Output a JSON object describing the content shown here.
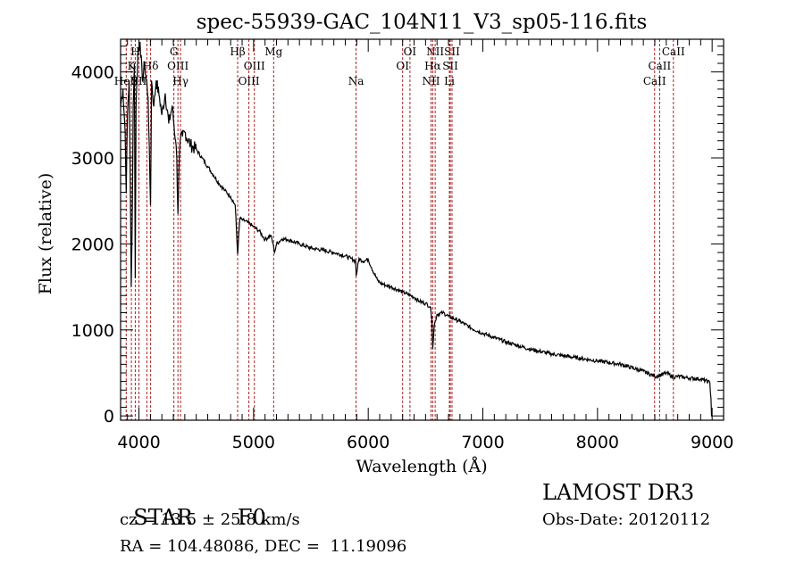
{
  "chart_data": {
    "type": "line",
    "title": "spec-55939-GAC_104N11_V3_sp05-116.fits",
    "xlabel": "Wavelength (Å)",
    "ylabel": "Flux (relative)",
    "xlim": [
      3840,
      9100
    ],
    "ylim": [
      -50,
      4380
    ],
    "x_ticks": [
      4000,
      5000,
      6000,
      7000,
      8000,
      9000
    ],
    "y_ticks": [
      0,
      1000,
      2000,
      3000,
      4000
    ],
    "x_minor_step": 100,
    "y_minor_step": 100,
    "grid": false,
    "series": [
      {
        "name": "spectrum",
        "color": "#000000",
        "x": [
          3840,
          3860,
          3880,
          3889,
          3900,
          3915,
          3933,
          3940,
          3950,
          3960,
          3968,
          3975,
          3990,
          4010,
          4030,
          4050,
          4080,
          4101,
          4110,
          4130,
          4150,
          4180,
          4200,
          4230,
          4260,
          4290,
          4320,
          4330,
          4340,
          4350,
          4360,
          4380,
          4400,
          4450,
          4500,
          4550,
          4600,
          4650,
          4700,
          4750,
          4800,
          4840,
          4861,
          4880,
          4900,
          4950,
          5000,
          5050,
          5100,
          5150,
          5170,
          5183,
          5200,
          5250,
          5300,
          5400,
          5500,
          5600,
          5700,
          5800,
          5850,
          5890,
          5895,
          5920,
          5950,
          6000,
          6030,
          6080,
          6100,
          6150,
          6200,
          6300,
          6400,
          6450,
          6500,
          6540,
          6555,
          6563,
          6575,
          6600,
          6650,
          6700,
          6800,
          6900,
          7000,
          7200,
          7400,
          7600,
          7800,
          8000,
          8200,
          8400,
          8498,
          8542,
          8600,
          8662,
          8700,
          8800,
          8900,
          8980,
          8990,
          8995,
          9000
        ],
        "y": [
          3600,
          3800,
          3300,
          2600,
          3500,
          3900,
          1500,
          2100,
          3600,
          4100,
          1600,
          3600,
          4200,
          4350,
          3900,
          4100,
          3700,
          2450,
          3900,
          3600,
          3900,
          3700,
          3500,
          3750,
          3400,
          3600,
          3200,
          3000,
          2350,
          2900,
          3200,
          3250,
          3300,
          3150,
          3100,
          3000,
          2900,
          2800,
          2700,
          2620,
          2550,
          2450,
          1880,
          2300,
          2280,
          2250,
          2200,
          2150,
          2050,
          2100,
          2000,
          1900,
          2000,
          2060,
          2050,
          2000,
          1950,
          1930,
          1900,
          1860,
          1830,
          1800,
          1630,
          1830,
          1800,
          1820,
          1720,
          1580,
          1550,
          1520,
          1500,
          1440,
          1380,
          1330,
          1310,
          1270,
          1150,
          780,
          1050,
          1180,
          1200,
          1160,
          1100,
          1020,
          960,
          860,
          780,
          720,
          680,
          640,
          600,
          520,
          460,
          470,
          500,
          450,
          460,
          440,
          430,
          390,
          200,
          0,
          0
        ]
      }
    ],
    "line_markers": {
      "color": "#aa2222",
      "style": "dotted",
      "lines": [
        {
          "label": "HeII",
          "wavelength": 3889,
          "row": 3
        },
        {
          "label": "K",
          "wavelength": 3934,
          "row": 2
        },
        {
          "label": "H",
          "wavelength": 3968,
          "row": 1
        },
        {
          "label": "SII",
          "wavelength": 4000,
          "row": 3
        },
        {
          "label": "Hδ",
          "wavelength": 4102,
          "row": 2
        },
        {
          "label": "SII",
          "wavelength": 4069,
          "row": 3,
          "hidden": true
        },
        {
          "label": "G",
          "wavelength": 4305,
          "row": 1
        },
        {
          "label": "OIII",
          "wavelength": 4340,
          "row": 2
        },
        {
          "label": "Hγ",
          "wavelength": 4363,
          "row": 3
        },
        {
          "label": "Hβ",
          "wavelength": 4861,
          "row": 1
        },
        {
          "label": "OIII",
          "wavelength": 5007,
          "row": 2
        },
        {
          "label": "OIII",
          "wavelength": 4959,
          "row": 3
        },
        {
          "label": "Mg",
          "wavelength": 5175,
          "row": 1
        },
        {
          "label": "Na",
          "wavelength": 5894,
          "row": 3
        },
        {
          "label": "OI",
          "wavelength": 6364,
          "row": 1
        },
        {
          "label": "OI",
          "wavelength": 6300,
          "row": 2
        },
        {
          "label": "NII",
          "wavelength": 6584,
          "row": 1
        },
        {
          "label": "Hα",
          "wavelength": 6563,
          "row": 2
        },
        {
          "label": "NII",
          "wavelength": 6548,
          "row": 3
        },
        {
          "label": "SII",
          "wavelength": 6731,
          "row": 1
        },
        {
          "label": "SII",
          "wavelength": 6716,
          "row": 2
        },
        {
          "label": "Li",
          "wavelength": 6708,
          "row": 3
        },
        {
          "label": "CaII",
          "wavelength": 8662,
          "row": 1
        },
        {
          "label": "CaII",
          "wavelength": 8542,
          "row": 2
        },
        {
          "label": "CaII",
          "wavelength": 8498,
          "row": 3
        }
      ]
    }
  },
  "info": {
    "object_class": "STAR",
    "subclass": "F0",
    "redshift_line": "cz = 13.5 ± 25.8 km/s",
    "coords_line": "RA = 104.48086, DEC =  11.19096",
    "survey": "LAMOST DR3",
    "obs_date_line": "Obs-Date: 20120112"
  }
}
